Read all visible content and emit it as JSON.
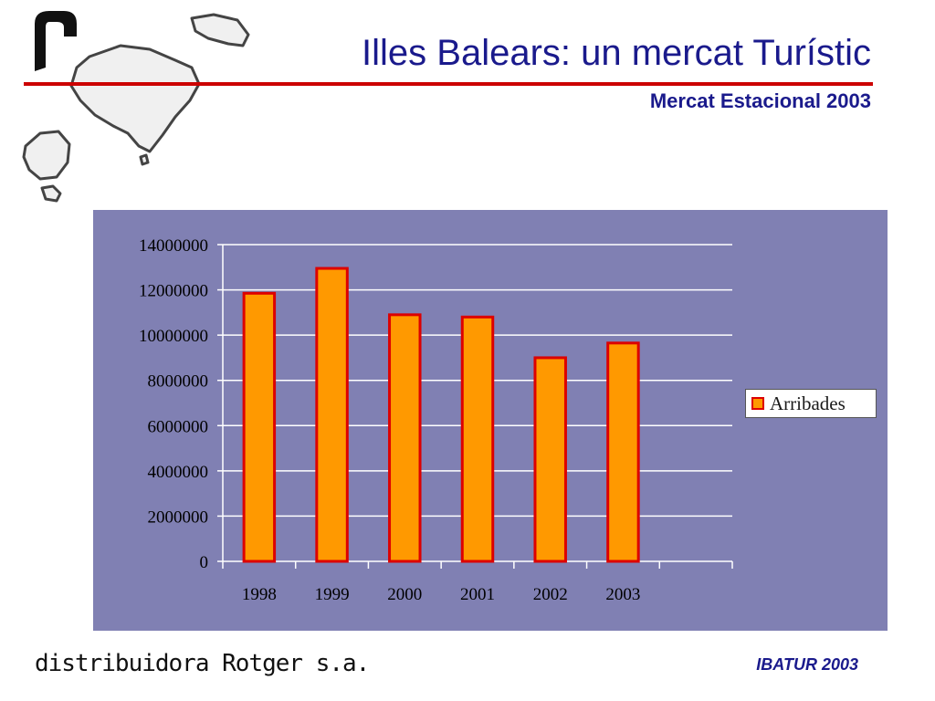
{
  "slide": {
    "title": "Illes Balears: un mercat Turístic",
    "subtitle": "Mercat Estacional 2003",
    "brand": "distribuidora Rotger s.a.",
    "source": "IBATUR 2003"
  },
  "colors": {
    "title": "#1a1a8c",
    "rule": "#cc0000",
    "panel": "#8080b3",
    "bar_fill": "#ff9900",
    "bar_stroke": "#dd0000"
  },
  "chart_data": {
    "type": "bar",
    "categories": [
      "1998",
      "1999",
      "2000",
      "2001",
      "2002",
      "2003"
    ],
    "series": [
      {
        "name": "Arribades",
        "values": [
          11850000,
          12950000,
          10900000,
          10800000,
          9000000,
          9650000
        ]
      }
    ],
    "yticks": [
      "0",
      "2000000",
      "4000000",
      "6000000",
      "8000000",
      "10000000",
      "12000000",
      "14000000"
    ],
    "ylim": [
      0,
      14000000
    ],
    "grid": true,
    "legend_position": "right"
  }
}
